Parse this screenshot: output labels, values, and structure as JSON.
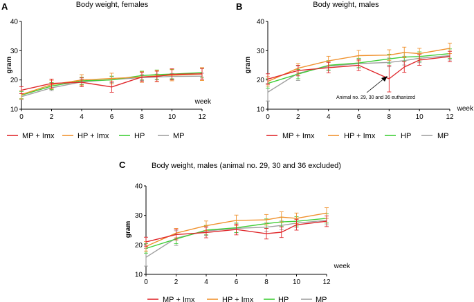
{
  "figure": {
    "colors": {
      "MP + Imx": "#e0282c",
      "HP + Imx": "#f0922e",
      "HP": "#3fce36",
      "MP": "#a0a0a0",
      "axis": "#000000"
    }
  },
  "chart_data": [
    {
      "panel": "A",
      "type": "line",
      "title": "Body weight, females",
      "xlabel": "week",
      "ylabel": "gram",
      "xlim": [
        0,
        12
      ],
      "ylim": [
        10,
        40
      ],
      "xticks": [
        0,
        2,
        4,
        6,
        8,
        10,
        12
      ],
      "yticks": [
        10,
        20,
        30,
        40
      ],
      "x": [
        0,
        2,
        4,
        6,
        8,
        9,
        10,
        12
      ],
      "series": [
        {
          "name": "MP + Imx",
          "values": [
            16.5,
            18.8,
            19.2,
            17.6,
            21.0,
            21.2,
            21.9,
            22.1
          ],
          "err": [
            1.2,
            1.5,
            1.5,
            1.8,
            1.6,
            1.8,
            1.9,
            1.8
          ]
        },
        {
          "name": "HP + Imx",
          "values": [
            15.0,
            18.4,
            20.0,
            20.5,
            21.0,
            21.4,
            21.6,
            22.0
          ],
          "err": [
            1.5,
            1.5,
            1.8,
            1.8,
            1.8,
            1.9,
            1.9,
            2.2
          ]
        },
        {
          "name": "HP",
          "values": [
            14.8,
            17.9,
            19.7,
            20.0,
            21.5,
            21.8,
            22.0,
            22.5
          ],
          "err": [
            1.2,
            1.2,
            1.2,
            1.3,
            1.5,
            1.6,
            1.6,
            1.6
          ]
        },
        {
          "name": "MP",
          "values": [
            14.3,
            17.3,
            19.3,
            20.1,
            20.8,
            21.0,
            21.2,
            21.3
          ],
          "err": [
            1.0,
            1.0,
            1.0,
            1.0,
            1.0,
            1.0,
            1.0,
            1.0
          ]
        }
      ],
      "legend": [
        "MP + Imx",
        "HP + Imx",
        "HP",
        "MP"
      ]
    },
    {
      "panel": "B",
      "type": "line",
      "title": "Body weight, males",
      "xlabel": "week",
      "ylabel": "gram",
      "xlim": [
        0,
        12
      ],
      "ylim": [
        10,
        40
      ],
      "xticks": [
        0,
        2,
        4,
        6,
        8,
        10,
        12
      ],
      "yticks": [
        10,
        20,
        30,
        40
      ],
      "x": [
        0,
        2,
        4,
        6,
        8,
        9,
        10,
        12
      ],
      "series": [
        {
          "name": "MP + Imx",
          "values": [
            20.3,
            23.2,
            24.2,
            25.0,
            20.4,
            24.4,
            26.8,
            28.0
          ],
          "err": [
            1.8,
            1.8,
            1.8,
            1.8,
            4.5,
            1.8,
            1.8,
            1.8
          ]
        },
        {
          "name": "HP + Imx",
          "values": [
            19.5,
            24.0,
            26.5,
            28.3,
            28.5,
            29.4,
            29.0,
            30.8
          ],
          "err": [
            1.6,
            1.6,
            1.6,
            1.8,
            1.8,
            1.8,
            1.8,
            1.8
          ]
        },
        {
          "name": "HP",
          "values": [
            18.8,
            22.0,
            25.0,
            25.8,
            27.2,
            27.8,
            28.0,
            29.0
          ],
          "err": [
            1.6,
            1.6,
            1.6,
            1.6,
            1.6,
            1.6,
            1.6,
            1.6
          ]
        },
        {
          "name": "MP",
          "values": [
            15.8,
            22.3,
            24.7,
            25.6,
            26.0,
            26.6,
            27.4,
            28.3
          ],
          "err": [
            3.0,
            2.5,
            1.5,
            1.5,
            1.5,
            1.5,
            1.5,
            1.5
          ]
        }
      ],
      "annotation": {
        "text": "Animal no. 29, 30 and 36 euthanized",
        "x": 8,
        "y": 20.4
      },
      "legend": [
        "MP + Imx",
        "HP + Imx",
        "HP",
        "MP"
      ]
    },
    {
      "panel": "C",
      "type": "line",
      "title": "Body weight, males (animal no. 29, 30 and 36 excluded)",
      "xlabel": "week",
      "ylabel": "gram",
      "xlim": [
        0,
        12
      ],
      "ylim": [
        10,
        40
      ],
      "xticks": [
        0,
        2,
        4,
        6,
        8,
        10,
        12
      ],
      "yticks": [
        10,
        20,
        30,
        40
      ],
      "x": [
        0,
        2,
        4,
        6,
        8,
        9,
        10,
        12
      ],
      "series": [
        {
          "name": "MP + Imx",
          "values": [
            21.0,
            23.5,
            24.2,
            25.2,
            23.8,
            24.3,
            26.8,
            28.0
          ],
          "err": [
            1.6,
            1.8,
            1.8,
            1.8,
            1.8,
            1.8,
            1.8,
            1.8
          ]
        },
        {
          "name": "HP + Imx",
          "values": [
            19.5,
            24.0,
            26.5,
            28.3,
            28.5,
            29.4,
            29.0,
            30.8
          ],
          "err": [
            1.6,
            1.6,
            1.6,
            1.8,
            1.8,
            1.8,
            1.8,
            1.8
          ]
        },
        {
          "name": "HP",
          "values": [
            18.8,
            22.0,
            25.0,
            25.8,
            27.2,
            27.8,
            28.0,
            29.0
          ],
          "err": [
            1.6,
            1.6,
            1.6,
            1.6,
            1.6,
            1.6,
            1.6,
            1.6
          ]
        },
        {
          "name": "MP",
          "values": [
            15.8,
            22.3,
            24.7,
            25.6,
            26.0,
            26.6,
            27.4,
            28.3
          ],
          "err": [
            3.0,
            2.5,
            1.5,
            1.5,
            1.5,
            1.5,
            1.5,
            1.5
          ]
        }
      ],
      "legend": [
        "MP + Imx",
        "HP + Imx",
        "HP",
        "MP"
      ]
    }
  ]
}
